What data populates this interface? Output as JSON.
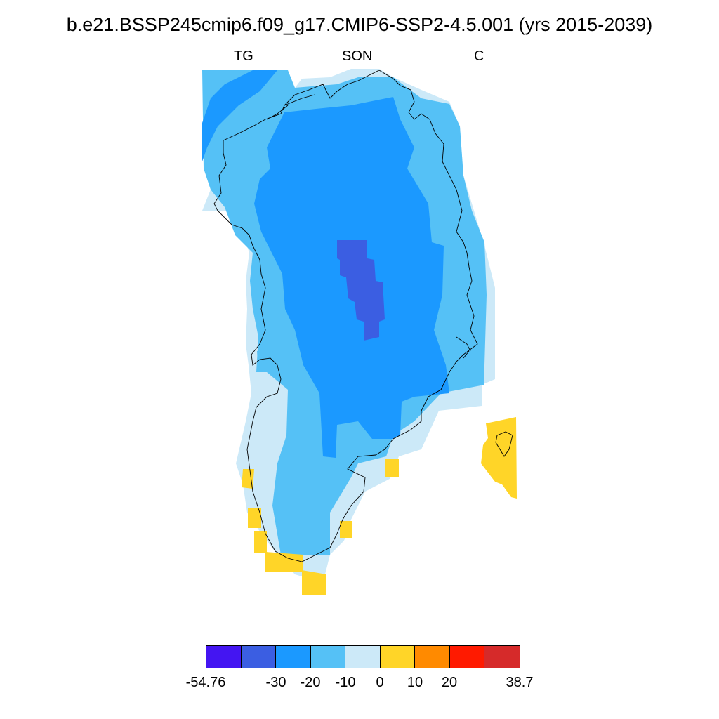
{
  "title": "b.e21.BSSP245cmip6.f09_g17.CMIP6-SSP2-4.5.001 (yrs 2015-2039)",
  "header_labels": {
    "left": "TG",
    "center": "SON",
    "right": "C"
  },
  "colorbar": {
    "colors": [
      "#4415f2",
      "#3b5ee2",
      "#1b99ff",
      "#55c1f6",
      "#cce9f8",
      "#ffd528",
      "#ff8a00",
      "#ff1a00",
      "#d62a2a"
    ],
    "labels": [
      "-54.76",
      "-30",
      "-20",
      "-10",
      "0",
      "10",
      "20",
      "38.7"
    ]
  }
}
